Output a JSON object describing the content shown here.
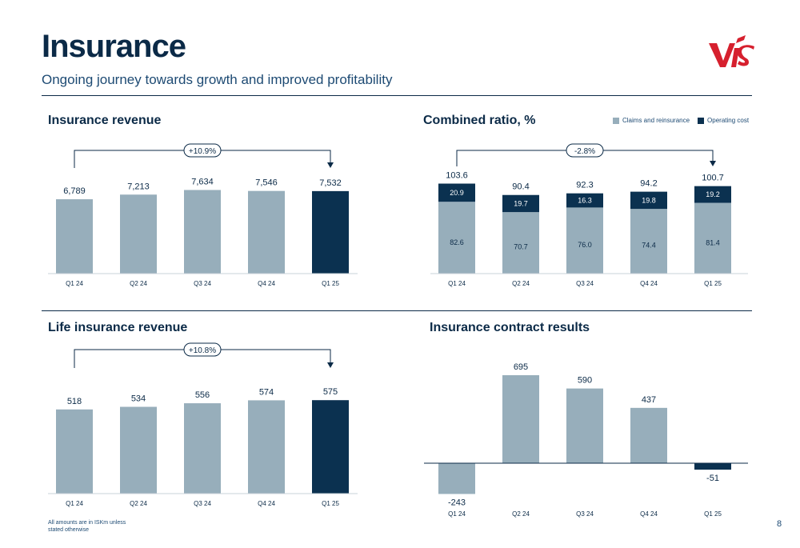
{
  "header": {
    "title": "Insurance",
    "subtitle": "Ongoing journey towards growth and improved profitability"
  },
  "colors": {
    "bar": "#97aebb",
    "highlight": "#0b3150",
    "text": "#0b2a47",
    "logo": "#d6202e"
  },
  "footer": {
    "note": "All amounts are in ISKm unless stated otherwise",
    "page": "8"
  },
  "chart_data": [
    {
      "id": "insurance-revenue",
      "type": "bar",
      "title": "Insurance revenue",
      "categories": [
        "Q1 24",
        "Q2 24",
        "Q3 24",
        "Q4 24",
        "Q1 25"
      ],
      "values": [
        6789,
        7213,
        7634,
        7546,
        7532
      ],
      "value_labels": [
        "6,789",
        "7,213",
        "7,634",
        "7,546",
        "7,532"
      ],
      "highlight_index": 4,
      "annotation": "+10.9%",
      "ylim": [
        0,
        8400
      ]
    },
    {
      "id": "combined-ratio",
      "type": "bar",
      "stacked": true,
      "title": "Combined ratio, %",
      "categories": [
        "Q1 24",
        "Q2 24",
        "Q3 24",
        "Q4 24",
        "Q1 25"
      ],
      "series": [
        {
          "name": "Claims and reinsurance",
          "values": [
            82.6,
            70.7,
            76.0,
            74.4,
            81.4
          ],
          "labels": [
            "82.6",
            "70.7",
            "76.0",
            "74.4",
            "81.4"
          ]
        },
        {
          "name": "Operating cost",
          "values": [
            20.9,
            19.7,
            16.3,
            19.8,
            19.2
          ],
          "labels": [
            "20.9",
            "19.7",
            "16.3",
            "19.8",
            "19.2"
          ]
        }
      ],
      "totals": [
        "103.6",
        "90.4",
        "92.3",
        "94.2",
        "100.7"
      ],
      "annotation": "-2.8%",
      "legend": "top-right",
      "ylim": [
        0,
        115
      ]
    },
    {
      "id": "life-insurance-revenue",
      "type": "bar",
      "title": "Life insurance revenue",
      "categories": [
        "Q1 24",
        "Q2 24",
        "Q3 24",
        "Q4 24",
        "Q1 25"
      ],
      "values": [
        518,
        534,
        556,
        574,
        575
      ],
      "value_labels": [
        "518",
        "534",
        "556",
        "574",
        "575"
      ],
      "highlight_index": 4,
      "annotation": "+10.8%",
      "ylim": [
        0,
        640
      ]
    },
    {
      "id": "insurance-contract-results",
      "type": "bar",
      "title": "Insurance contract results",
      "categories": [
        "Q1 24",
        "Q2 24",
        "Q3 24",
        "Q4 24",
        "Q1 25"
      ],
      "values": [
        -243,
        695,
        590,
        437,
        -51
      ],
      "value_labels": [
        "-243",
        "695",
        "590",
        "437",
        "-51"
      ],
      "highlight_index": 4,
      "ylim": [
        -243,
        695
      ]
    }
  ]
}
